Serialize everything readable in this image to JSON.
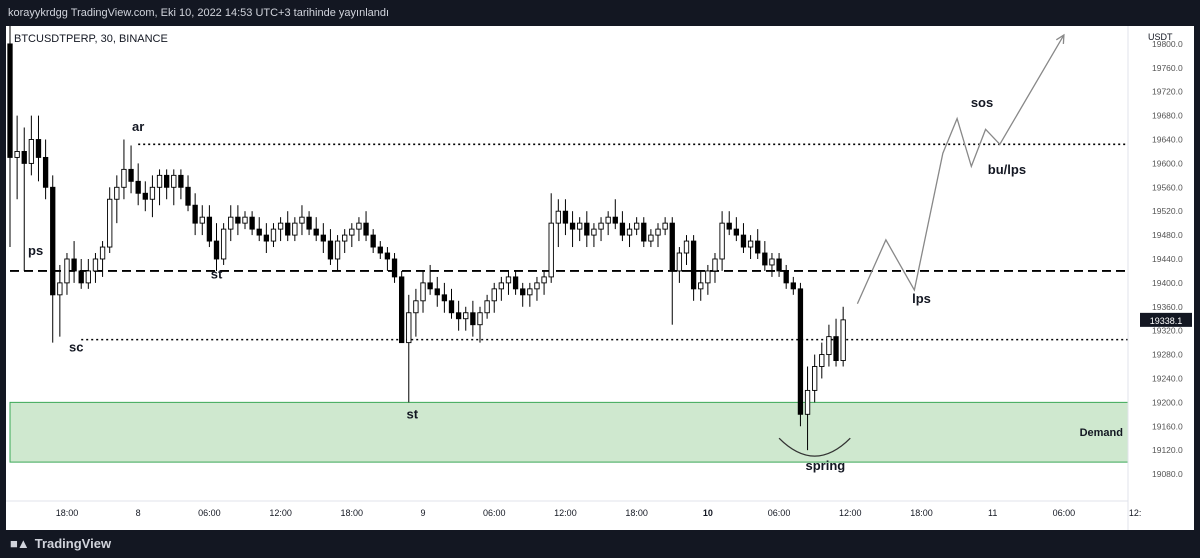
{
  "header": {
    "published_text": "korayykrdgg TradingView.com, Eki 10, 2022 14:53 UTC+3 tarihinde yayınlandı"
  },
  "symbol_label": "BTCUSDTPERP, 30, BINANCE",
  "currency_label": "USDT",
  "footer": {
    "brand": "TradingView",
    "logo_icon": "tradingview-logo-icon"
  },
  "colors": {
    "background": "#131722",
    "panel": "#ffffff",
    "candle": "#000000",
    "demand_fill": "#cfe8cf",
    "demand_stroke": "#3aa856",
    "projection": "#888888"
  },
  "chart_data": {
    "type": "candlestick",
    "symbol": "BTCUSDTPERP",
    "interval": "30",
    "exchange": "BINANCE",
    "ylim": [
      19060,
      19830
    ],
    "xlim": [
      0,
      157
    ],
    "y_ticks": [
      19800,
      19760,
      19720,
      19680,
      19640,
      19600,
      19560,
      19520,
      19480,
      19440,
      19400,
      19360,
      19320,
      19280,
      19240,
      19200,
      19160,
      19120,
      19080
    ],
    "y_tick_labels": [
      "19800.0",
      "19760.0",
      "19720.0",
      "19680.0",
      "19640.0",
      "19600.0",
      "19560.0",
      "19520.0",
      "19480.0",
      "19440.0",
      "19400.0",
      "19360.0",
      "19320.0",
      "19280.0",
      "19240.0",
      "19200.0",
      "19160.0",
      "19120.0",
      "19080.0"
    ],
    "x_ticks": [
      {
        "x": 8,
        "label": "18:00",
        "bold": false
      },
      {
        "x": 18,
        "label": "8",
        "bold": false
      },
      {
        "x": 28,
        "label": "06:00",
        "bold": false
      },
      {
        "x": 38,
        "label": "12:00",
        "bold": false
      },
      {
        "x": 48,
        "label": "18:00",
        "bold": false
      },
      {
        "x": 58,
        "label": "9",
        "bold": false
      },
      {
        "x": 68,
        "label": "06:00",
        "bold": false
      },
      {
        "x": 78,
        "label": "12:00",
        "bold": false
      },
      {
        "x": 88,
        "label": "18:00",
        "bold": false
      },
      {
        "x": 98,
        "label": "10",
        "bold": true
      },
      {
        "x": 108,
        "label": "06:00",
        "bold": false
      },
      {
        "x": 118,
        "label": "12:00",
        "bold": false
      },
      {
        "x": 128,
        "label": "18:00",
        "bold": false
      },
      {
        "x": 138,
        "label": "11",
        "bold": false
      },
      {
        "x": 148,
        "label": "06:00",
        "bold": false
      },
      {
        "x": 158,
        "label": "12:",
        "bold": false
      }
    ],
    "last_price": 19338.1,
    "last_price_label": "19338.1",
    "candles": [
      [
        0,
        19800,
        19830,
        19460,
        19610
      ],
      [
        1,
        19610,
        19680,
        19540,
        19620
      ],
      [
        2,
        19620,
        19660,
        19420,
        19600
      ],
      [
        3,
        19600,
        19680,
        19580,
        19640
      ],
      [
        4,
        19640,
        19680,
        19570,
        19610
      ],
      [
        5,
        19610,
        19640,
        19540,
        19560
      ],
      [
        6,
        19560,
        19580,
        19300,
        19380
      ],
      [
        7,
        19380,
        19430,
        19310,
        19400
      ],
      [
        8,
        19400,
        19450,
        19380,
        19440
      ],
      [
        9,
        19440,
        19470,
        19400,
        19420
      ],
      [
        10,
        19420,
        19440,
        19390,
        19400
      ],
      [
        11,
        19400,
        19440,
        19390,
        19420
      ],
      [
        12,
        19420,
        19450,
        19400,
        19440
      ],
      [
        13,
        19440,
        19470,
        19410,
        19460
      ],
      [
        14,
        19460,
        19560,
        19450,
        19540
      ],
      [
        15,
        19540,
        19580,
        19500,
        19560
      ],
      [
        16,
        19560,
        19640,
        19540,
        19590
      ],
      [
        17,
        19590,
        19630,
        19550,
        19570
      ],
      [
        18,
        19570,
        19600,
        19530,
        19550
      ],
      [
        19,
        19550,
        19570,
        19520,
        19540
      ],
      [
        20,
        19540,
        19580,
        19510,
        19560
      ],
      [
        21,
        19560,
        19590,
        19530,
        19580
      ],
      [
        22,
        19580,
        19590,
        19540,
        19560
      ],
      [
        23,
        19560,
        19590,
        19530,
        19580
      ],
      [
        24,
        19580,
        19590,
        19540,
        19560
      ],
      [
        25,
        19560,
        19580,
        19520,
        19530
      ],
      [
        26,
        19530,
        19550,
        19480,
        19500
      ],
      [
        27,
        19500,
        19530,
        19480,
        19510
      ],
      [
        28,
        19510,
        19530,
        19460,
        19470
      ],
      [
        29,
        19470,
        19500,
        19420,
        19440
      ],
      [
        30,
        19440,
        19500,
        19430,
        19490
      ],
      [
        31,
        19490,
        19530,
        19470,
        19510
      ],
      [
        32,
        19510,
        19530,
        19480,
        19500
      ],
      [
        33,
        19500,
        19520,
        19490,
        19510
      ],
      [
        34,
        19510,
        19520,
        19480,
        19490
      ],
      [
        35,
        19490,
        19510,
        19470,
        19480
      ],
      [
        36,
        19480,
        19500,
        19450,
        19470
      ],
      [
        37,
        19470,
        19500,
        19460,
        19490
      ],
      [
        38,
        19490,
        19510,
        19470,
        19500
      ],
      [
        39,
        19500,
        19520,
        19470,
        19480
      ],
      [
        40,
        19480,
        19510,
        19470,
        19500
      ],
      [
        41,
        19500,
        19530,
        19480,
        19510
      ],
      [
        42,
        19510,
        19520,
        19480,
        19490
      ],
      [
        43,
        19490,
        19510,
        19470,
        19480
      ],
      [
        44,
        19480,
        19500,
        19450,
        19470
      ],
      [
        45,
        19470,
        19490,
        19430,
        19440
      ],
      [
        46,
        19440,
        19480,
        19420,
        19470
      ],
      [
        47,
        19470,
        19490,
        19450,
        19480
      ],
      [
        48,
        19480,
        19500,
        19460,
        19490
      ],
      [
        49,
        19490,
        19510,
        19470,
        19500
      ],
      [
        50,
        19500,
        19520,
        19470,
        19480
      ],
      [
        51,
        19480,
        19490,
        19450,
        19460
      ],
      [
        52,
        19460,
        19470,
        19440,
        19450
      ],
      [
        53,
        19450,
        19460,
        19420,
        19440
      ],
      [
        54,
        19440,
        19450,
        19400,
        19410
      ],
      [
        55,
        19410,
        19420,
        19300,
        19300
      ],
      [
        56,
        19300,
        19380,
        19200,
        19350
      ],
      [
        57,
        19350,
        19390,
        19310,
        19370
      ],
      [
        58,
        19370,
        19420,
        19350,
        19400
      ],
      [
        59,
        19400,
        19430,
        19380,
        19390
      ],
      [
        60,
        19390,
        19410,
        19360,
        19380
      ],
      [
        61,
        19380,
        19400,
        19350,
        19370
      ],
      [
        62,
        19370,
        19390,
        19340,
        19350
      ],
      [
        63,
        19350,
        19370,
        19320,
        19340
      ],
      [
        64,
        19340,
        19360,
        19320,
        19350
      ],
      [
        65,
        19350,
        19370,
        19310,
        19330
      ],
      [
        66,
        19330,
        19360,
        19300,
        19350
      ],
      [
        67,
        19350,
        19380,
        19340,
        19370
      ],
      [
        68,
        19370,
        19400,
        19350,
        19390
      ],
      [
        69,
        19390,
        19410,
        19370,
        19400
      ],
      [
        70,
        19400,
        19420,
        19380,
        19410
      ],
      [
        71,
        19410,
        19420,
        19380,
        19390
      ],
      [
        72,
        19390,
        19400,
        19360,
        19380
      ],
      [
        73,
        19380,
        19400,
        19360,
        19390
      ],
      [
        74,
        19390,
        19410,
        19370,
        19400
      ],
      [
        75,
        19400,
        19420,
        19380,
        19410
      ],
      [
        76,
        19410,
        19550,
        19400,
        19500
      ],
      [
        77,
        19500,
        19540,
        19460,
        19520
      ],
      [
        78,
        19520,
        19540,
        19480,
        19500
      ],
      [
        79,
        19500,
        19520,
        19460,
        19490
      ],
      [
        80,
        19490,
        19510,
        19470,
        19500
      ],
      [
        81,
        19500,
        19520,
        19460,
        19480
      ],
      [
        82,
        19480,
        19500,
        19460,
        19490
      ],
      [
        83,
        19490,
        19510,
        19470,
        19500
      ],
      [
        84,
        19500,
        19520,
        19480,
        19510
      ],
      [
        85,
        19510,
        19540,
        19490,
        19500
      ],
      [
        86,
        19500,
        19520,
        19470,
        19480
      ],
      [
        87,
        19480,
        19500,
        19460,
        19490
      ],
      [
        88,
        19490,
        19510,
        19480,
        19500
      ],
      [
        89,
        19500,
        19510,
        19460,
        19470
      ],
      [
        90,
        19470,
        19490,
        19460,
        19480
      ],
      [
        91,
        19480,
        19500,
        19460,
        19490
      ],
      [
        92,
        19490,
        19510,
        19480,
        19500
      ],
      [
        93,
        19500,
        19510,
        19330,
        19420
      ],
      [
        94,
        19420,
        19460,
        19400,
        19450
      ],
      [
        95,
        19450,
        19480,
        19430,
        19470
      ],
      [
        96,
        19470,
        19480,
        19370,
        19390
      ],
      [
        97,
        19390,
        19420,
        19370,
        19400
      ],
      [
        98,
        19400,
        19430,
        19380,
        19420
      ],
      [
        99,
        19420,
        19450,
        19400,
        19440
      ],
      [
        100,
        19440,
        19520,
        19420,
        19500
      ],
      [
        101,
        19500,
        19520,
        19480,
        19490
      ],
      [
        102,
        19490,
        19510,
        19470,
        19480
      ],
      [
        103,
        19480,
        19500,
        19450,
        19460
      ],
      [
        104,
        19460,
        19480,
        19440,
        19470
      ],
      [
        105,
        19470,
        19490,
        19440,
        19450
      ],
      [
        106,
        19450,
        19470,
        19420,
        19430
      ],
      [
        107,
        19430,
        19450,
        19410,
        19440
      ],
      [
        108,
        19440,
        19450,
        19410,
        19420
      ],
      [
        109,
        19420,
        19430,
        19390,
        19400
      ],
      [
        110,
        19400,
        19410,
        19380,
        19390
      ],
      [
        111,
        19390,
        19400,
        19160,
        19180
      ],
      [
        112,
        19180,
        19260,
        19120,
        19220
      ],
      [
        113,
        19220,
        19280,
        19200,
        19260
      ],
      [
        114,
        19260,
        19300,
        19240,
        19280
      ],
      [
        115,
        19280,
        19330,
        19260,
        19310
      ],
      [
        116,
        19310,
        19340,
        19260,
        19270
      ],
      [
        117,
        19270,
        19360,
        19260,
        19338.1
      ]
    ],
    "levels": [
      {
        "name": "ar-level",
        "price": 19632,
        "from": 18,
        "style": "dotted"
      },
      {
        "name": "midrange",
        "price": 19420,
        "from": 0,
        "style": "dashed"
      },
      {
        "name": "sc-level",
        "price": 19305,
        "from": 10,
        "style": "dotted"
      }
    ],
    "zones": [
      {
        "name": "demand",
        "label": "Demand",
        "from": 0,
        "to": 157,
        "low": 19100,
        "high": 19200
      }
    ],
    "projection": [
      [
        119,
        19365
      ],
      [
        123,
        19472
      ],
      [
        127,
        19388
      ],
      [
        131,
        19617
      ],
      [
        133,
        19675
      ],
      [
        135,
        19595
      ],
      [
        137,
        19657
      ],
      [
        139,
        19632
      ],
      [
        148,
        19815
      ]
    ],
    "spring_curve": {
      "from": 108,
      "to": 118,
      "price": 19140,
      "depth": 30
    },
    "annotations": [
      {
        "text": "ps",
        "x": 3.6,
        "price": 19447
      },
      {
        "text": "sc",
        "x": 9.3,
        "price": 19285
      },
      {
        "text": "ar",
        "x": 18,
        "price": 19654
      },
      {
        "text": "st",
        "x": 29,
        "price": 19407
      },
      {
        "text": "st",
        "x": 56.5,
        "price": 19173
      },
      {
        "text": "spring",
        "x": 114.5,
        "price": 19087
      },
      {
        "text": "lps",
        "x": 128,
        "price": 19366
      },
      {
        "text": "sos",
        "x": 136.5,
        "price": 19694
      },
      {
        "text": "bu/lps",
        "x": 140,
        "price": 19582
      }
    ]
  }
}
